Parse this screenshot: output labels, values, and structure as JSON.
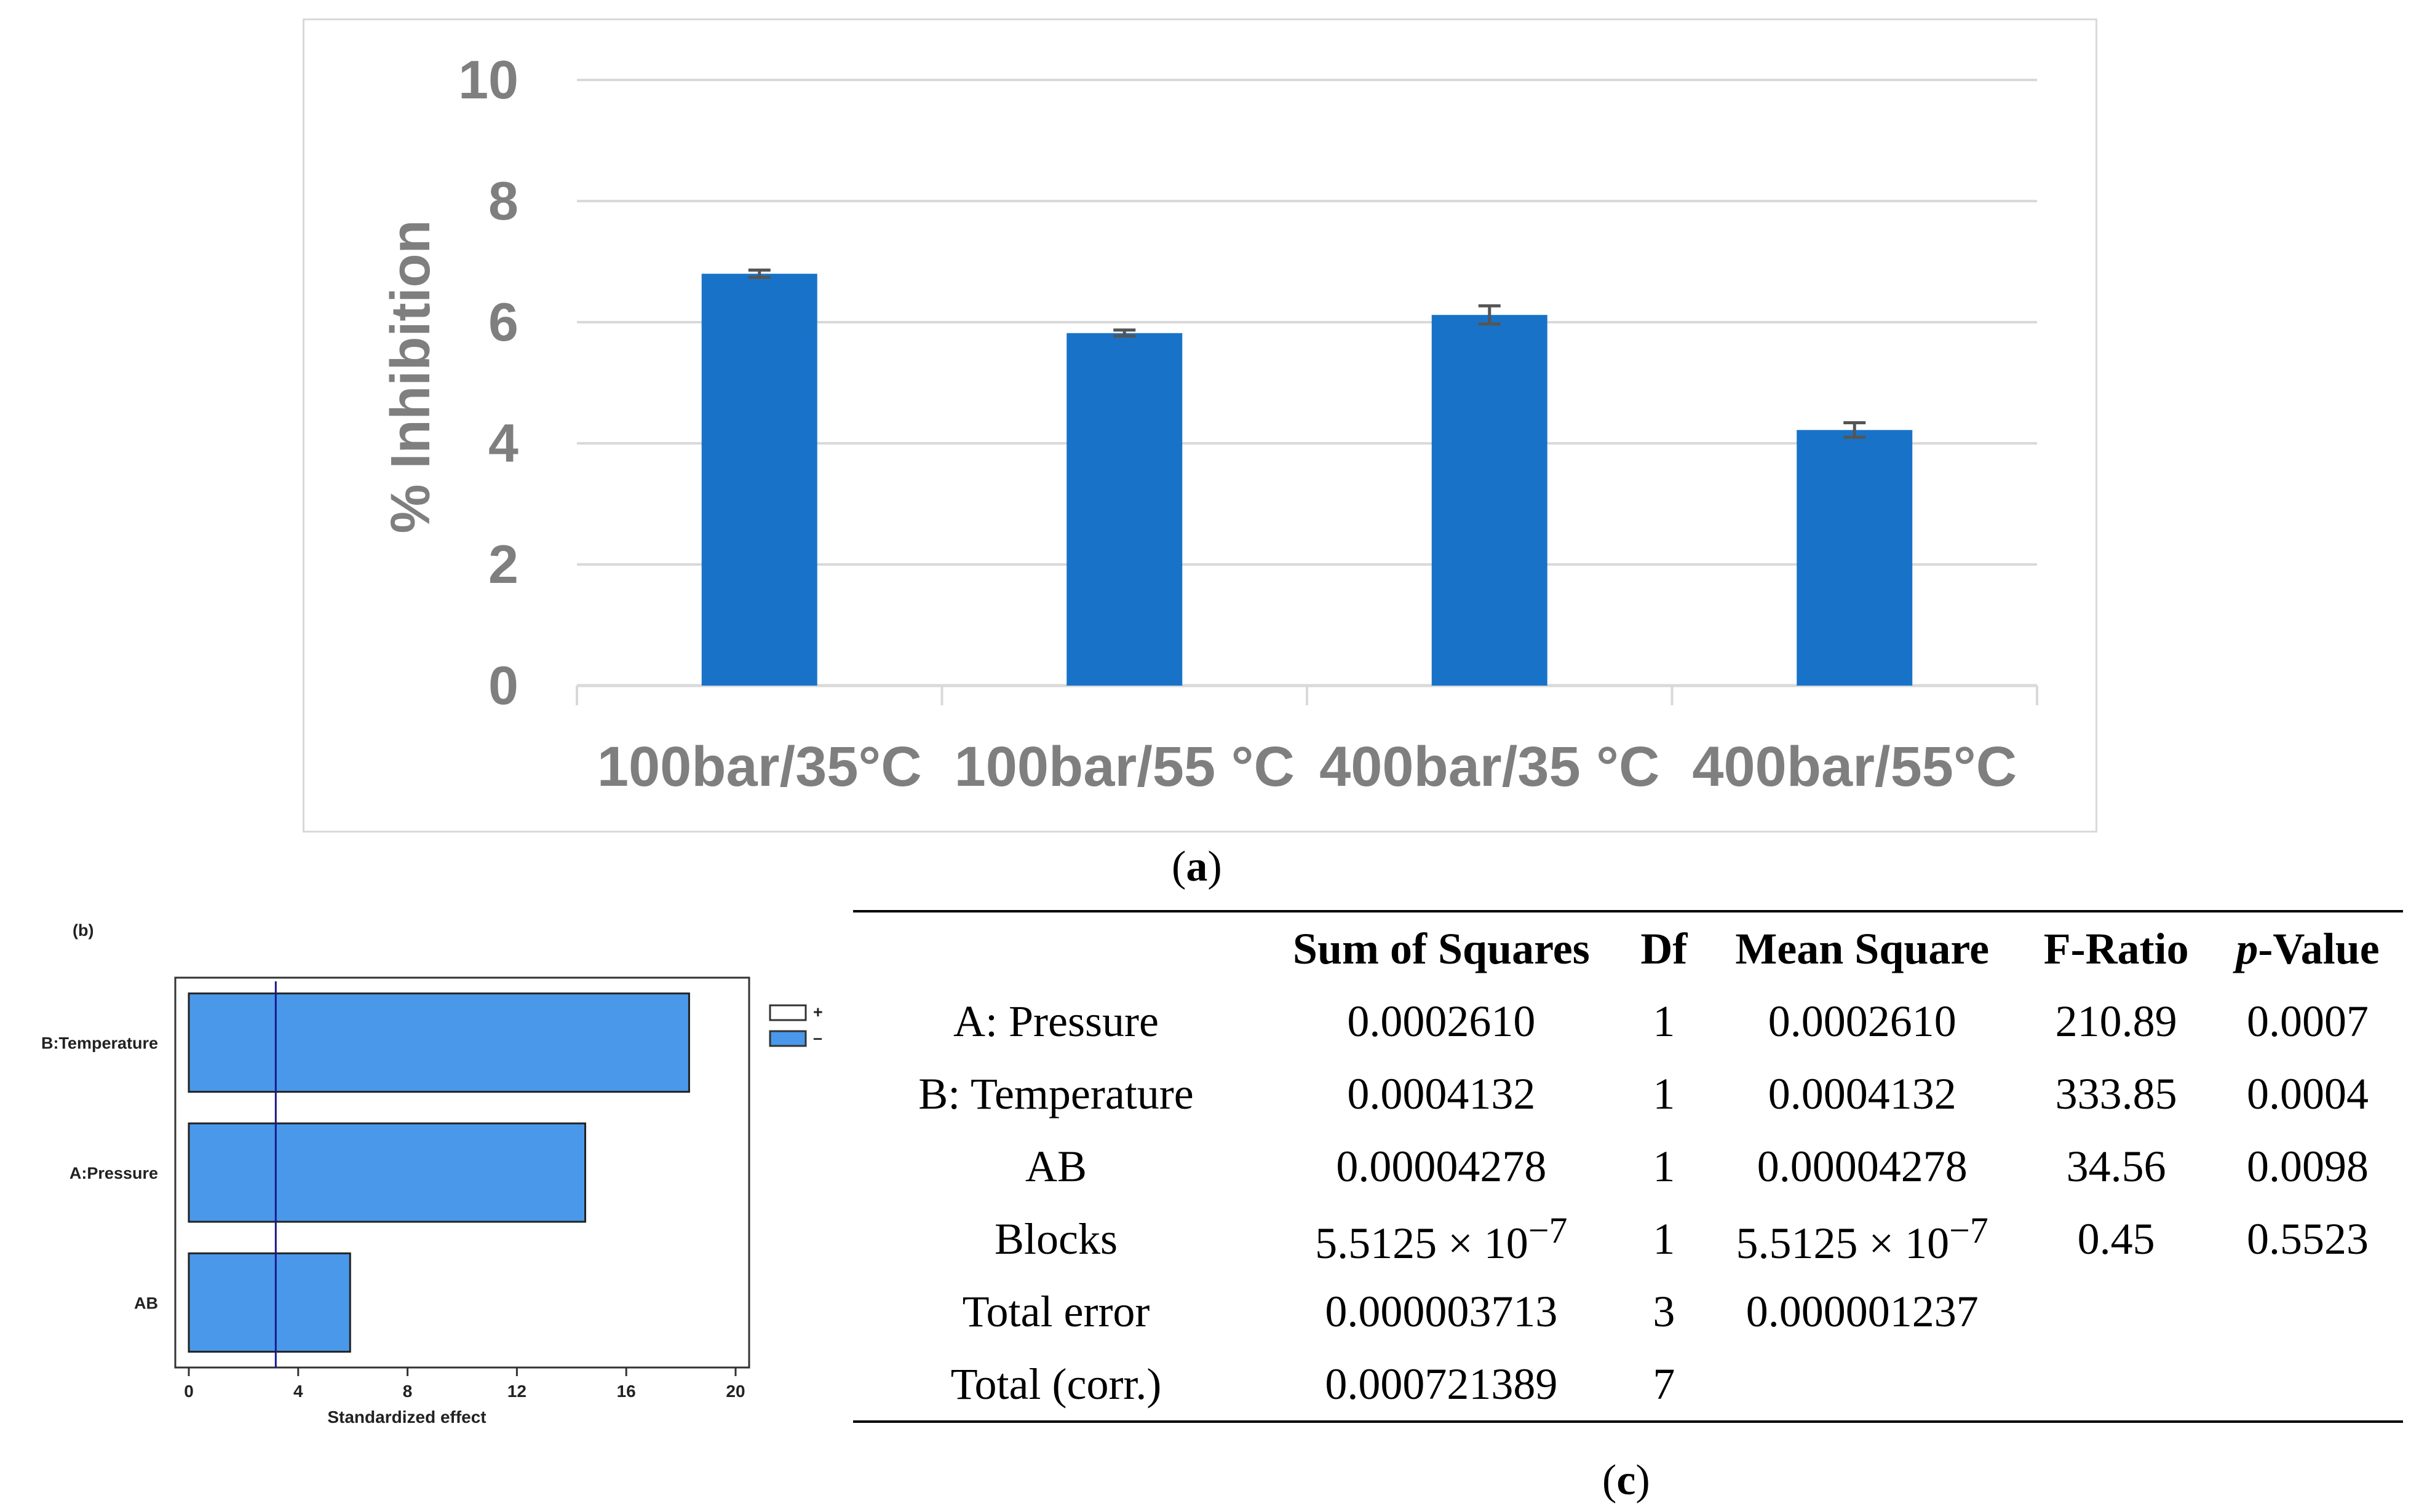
{
  "chart_data": [
    {
      "type": "bar",
      "panel": "a",
      "title": "",
      "categories": [
        "100bar/35°C",
        "100bar/55 °C",
        "400bar/35 °C",
        "400bar/55°C"
      ],
      "values": [
        6.8,
        5.82,
        6.12,
        4.22
      ],
      "errors": [
        0.06,
        0.05,
        0.15,
        0.12
      ],
      "ylabel": "% Inhibition",
      "xlabel": "",
      "ylim": [
        0,
        10
      ],
      "yticks": [
        0,
        2,
        4,
        6,
        8,
        10
      ],
      "grid": true,
      "color": "#1873c8"
    },
    {
      "type": "bar",
      "orientation": "horizontal",
      "panel": "b",
      "title": "(b)",
      "categories": [
        "B:Temperature",
        "A:Pressure",
        "AB"
      ],
      "values": [
        18.3,
        14.5,
        5.9
      ],
      "xlabel": "Standardized effect",
      "xlim": [
        0,
        20
      ],
      "xticks": [
        0,
        4,
        8,
        12,
        16,
        20
      ],
      "reference_line": 3.18,
      "legend": [
        {
          "label": "+",
          "color": "#ffffff"
        },
        {
          "label": "–",
          "color": "#4a98ea"
        }
      ],
      "color": "#4a98ea"
    }
  ],
  "captions": {
    "a": {
      "open": "(",
      "letter": "a",
      "close": ")"
    },
    "c": {
      "open": "(",
      "letter": "c",
      "close": ")"
    }
  },
  "table": {
    "headers": [
      "",
      "Sum of Squares",
      "Df",
      "Mean Square",
      "F-Ratio",
      "-Value"
    ],
    "pvalue_prefix": "p",
    "rows": [
      {
        "source": "A: Pressure",
        "ss": "0.0002610",
        "df": "1",
        "ms": "0.0002610",
        "f": "210.89",
        "p": "0.0007"
      },
      {
        "source": "B: Temperature",
        "ss": "0.0004132",
        "df": "1",
        "ms": "0.0004132",
        "f": "333.85",
        "p": "0.0004"
      },
      {
        "source": "AB",
        "ss": "0.00004278",
        "df": "1",
        "ms": "0.00004278",
        "f": "34.56",
        "p": "0.0098"
      },
      {
        "source": "Blocks",
        "ss": "5.5125 × 10",
        "ss_exp": "−7",
        "df": "1",
        "ms": "5.5125 × 10",
        "ms_exp": "−7",
        "f": "0.45",
        "p": "0.5523"
      },
      {
        "source": "Total error",
        "ss": "0.000003713",
        "df": "3",
        "ms": "0.000001237",
        "f": "",
        "p": ""
      },
      {
        "source": "Total (corr.)",
        "ss": "0.000721389",
        "df": "7",
        "ms": "",
        "f": "",
        "p": ""
      }
    ]
  }
}
